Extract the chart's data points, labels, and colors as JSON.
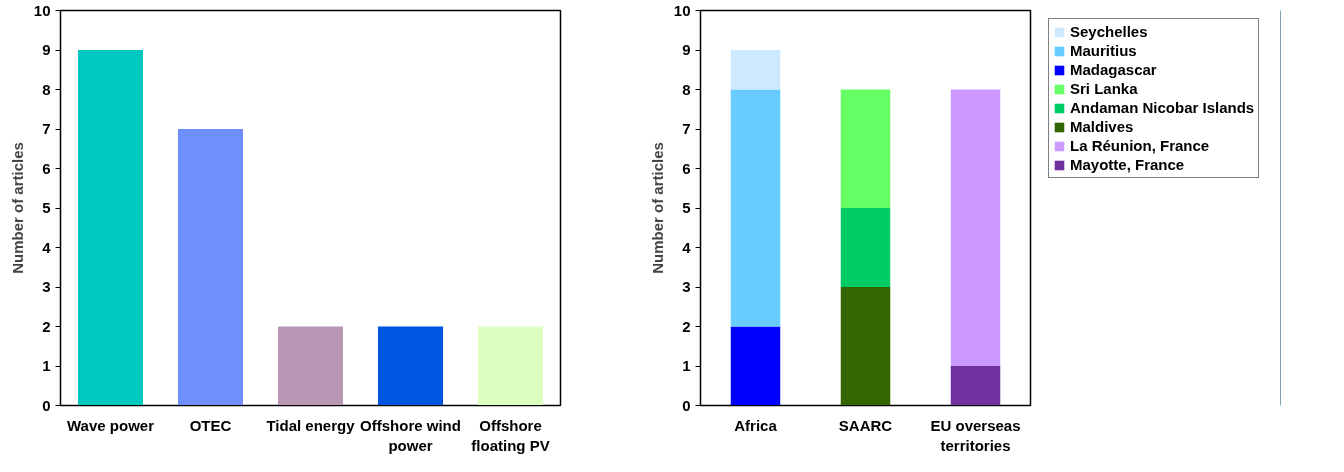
{
  "chart_data": [
    {
      "type": "bar",
      "ylabel": "Number of articles",
      "categories": [
        "Wave power",
        "OTEC",
        "Tidal energy",
        "Offshore wind power",
        "Offshore floating PV"
      ],
      "values": [
        9,
        7,
        2,
        2,
        2
      ],
      "colors": [
        "#00c8be",
        "#6f8fff",
        "#b896b4",
        "#0055e0",
        "#ddffc0"
      ],
      "ylim": [
        0,
        10
      ],
      "yticks": [
        0,
        1,
        2,
        3,
        4,
        5,
        6,
        7,
        8,
        9,
        10
      ],
      "grid": false
    },
    {
      "type": "bar",
      "stacked": true,
      "ylabel": "Number of articles",
      "categories": [
        "Africa",
        "SAARC",
        "EU overseas territories"
      ],
      "ylim": [
        0,
        10
      ],
      "yticks": [
        0,
        1,
        2,
        3,
        4,
        5,
        6,
        7,
        8,
        9,
        10
      ],
      "grid": false,
      "legend": "right",
      "series": [
        {
          "name": "Madagascar",
          "color": "#0000ff",
          "values": [
            2,
            null,
            null
          ]
        },
        {
          "name": "Mauritius",
          "color": "#66ccff",
          "values": [
            6,
            null,
            null
          ]
        },
        {
          "name": "Seychelles",
          "color": "#cce9ff",
          "values": [
            1,
            null,
            null
          ]
        },
        {
          "name": "Maldives",
          "color": "#336600",
          "values": [
            null,
            3,
            null
          ]
        },
        {
          "name": "Andaman Nicobar Islands",
          "color": "#00cc66",
          "values": [
            null,
            2,
            null
          ]
        },
        {
          "name": "Sri Lanka",
          "color": "#66ff66",
          "values": [
            null,
            3,
            null
          ]
        },
        {
          "name": "Mayotte, France",
          "color": "#7030a0",
          "values": [
            null,
            null,
            1
          ]
        },
        {
          "name": "La Réunion, France",
          "color": "#cc99ff",
          "values": [
            null,
            null,
            7
          ]
        }
      ]
    }
  ]
}
